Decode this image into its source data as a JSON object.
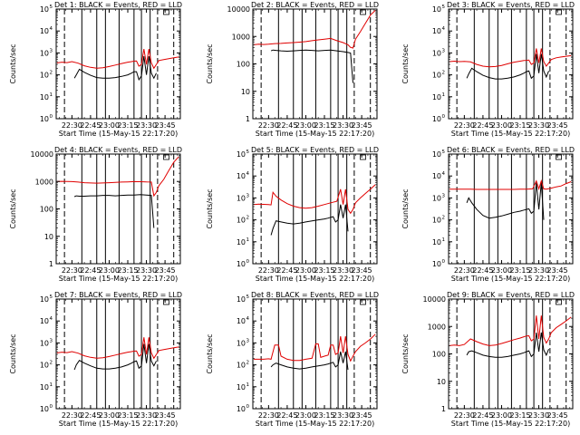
{
  "xlabel": "Start Time (15-May-15 22:17:20)",
  "ylabel": "Counts/sec",
  "x_ticks": [
    "22:30",
    "22:45",
    "23:00",
    "23:15",
    "23:30",
    "23:45"
  ],
  "x_tick_minutes": [
    30,
    45,
    60,
    75,
    90,
    105
  ],
  "xlim_minutes": [
    17.33,
    117.33
  ],
  "colors": {
    "black_series": "#000000",
    "red_series": "#e00000",
    "frame": "#000000"
  },
  "marker_lines_minutes": {
    "dashed": [
      24,
      99,
      112
    ],
    "solid": [
      38,
      50,
      57,
      68,
      80,
      86,
      93
    ]
  },
  "grid": false,
  "chart_data": [
    {
      "type": "line",
      "title": "Det 1: BLACK = Events, RED = LLD",
      "log_scale": true,
      "ylim": [
        1,
        100000
      ],
      "y_ticks": [
        1,
        10,
        100,
        1000,
        10000,
        100000
      ],
      "y_tick_style": "power",
      "series": [
        {
          "color": "black",
          "x": [
            32,
            33.5,
            36,
            40,
            45,
            50,
            55,
            60,
            65,
            70,
            75,
            78,
            80,
            82,
            84,
            86,
            88,
            90,
            92,
            94,
            96,
            98
          ],
          "y": [
            70,
            100,
            180,
            130,
            95,
            75,
            70,
            70,
            75,
            85,
            100,
            120,
            140,
            140,
            60,
            90,
            700,
            100,
            700,
            120,
            70,
            120
          ]
        },
        {
          "color": "red",
          "x": [
            18,
            22,
            26,
            30,
            35,
            40,
            45,
            50,
            55,
            60,
            65,
            70,
            75,
            78,
            80,
            82,
            84,
            86,
            88,
            90,
            92,
            94,
            96,
            98,
            100,
            104,
            108,
            112,
            116
          ],
          "y": [
            350,
            380,
            360,
            400,
            340,
            260,
            220,
            200,
            210,
            240,
            280,
            330,
            380,
            400,
            420,
            430,
            250,
            300,
            1500,
            300,
            1500,
            350,
            200,
            300,
            450,
            500,
            550,
            600,
            650
          ]
        }
      ]
    },
    {
      "type": "line",
      "title": "Det 2: BLACK = Events, RED = LLD",
      "log_scale": true,
      "ylim": [
        1,
        10000
      ],
      "y_ticks": [
        1,
        10,
        100,
        1000,
        10000
      ],
      "y_tick_style": "plain",
      "y_tick_labels": [
        "1",
        "10",
        "100",
        "1000",
        "10000"
      ],
      "series": [
        {
          "color": "black",
          "x": [
            32,
            33.5,
            36,
            40,
            45,
            50,
            55,
            60,
            65,
            70,
            75,
            80,
            85,
            90,
            94,
            96,
            98
          ],
          "y": [
            300,
            320,
            310,
            300,
            290,
            300,
            310,
            320,
            310,
            300,
            310,
            320,
            300,
            280,
            260,
            250,
            20
          ]
        },
        {
          "color": "red",
          "x": [
            18,
            22,
            26,
            30,
            35,
            40,
            45,
            50,
            55,
            60,
            65,
            70,
            75,
            80,
            85,
            90,
            94,
            96,
            98,
            100,
            104,
            108,
            112,
            116
          ],
          "y": [
            500,
            520,
            510,
            520,
            550,
            560,
            580,
            600,
            620,
            650,
            700,
            750,
            800,
            850,
            700,
            600,
            500,
            400,
            380,
            800,
            1500,
            3000,
            6000,
            9000
          ]
        }
      ]
    },
    {
      "type": "line",
      "title": "Det 3: BLACK = Events, RED = LLD",
      "log_scale": true,
      "ylim": [
        1,
        100000
      ],
      "y_ticks": [
        1,
        10,
        100,
        1000,
        10000,
        100000
      ],
      "y_tick_style": "power",
      "series": [
        {
          "color": "black",
          "x": [
            32,
            33.5,
            36,
            40,
            45,
            50,
            55,
            60,
            65,
            70,
            75,
            78,
            80,
            82,
            84,
            86,
            88,
            90,
            92,
            94,
            96,
            98
          ],
          "y": [
            70,
            110,
            200,
            140,
            95,
            75,
            65,
            65,
            70,
            80,
            100,
            120,
            140,
            150,
            70,
            90,
            900,
            120,
            900,
            150,
            80,
            150
          ]
        },
        {
          "color": "red",
          "x": [
            18,
            22,
            26,
            30,
            35,
            40,
            45,
            50,
            55,
            60,
            65,
            70,
            75,
            78,
            80,
            82,
            84,
            86,
            88,
            90,
            92,
            94,
            96,
            98,
            100,
            104,
            108,
            112,
            116
          ],
          "y": [
            400,
            420,
            400,
            410,
            390,
            300,
            250,
            230,
            240,
            270,
            320,
            380,
            420,
            450,
            460,
            470,
            300,
            350,
            1600,
            350,
            1600,
            400,
            250,
            350,
            500,
            600,
            650,
            700,
            750
          ]
        }
      ]
    },
    {
      "type": "line",
      "title": "Det 4: BLACK = Events, RED = LLD",
      "log_scale": true,
      "ylim": [
        1,
        10000
      ],
      "y_ticks": [
        1,
        10,
        100,
        1000,
        10000
      ],
      "y_tick_style": "plain",
      "y_tick_labels": [
        "1",
        "10",
        "100",
        "1000",
        "10000"
      ],
      "series": [
        {
          "color": "black",
          "x": [
            32,
            33.5,
            36,
            40,
            45,
            50,
            55,
            60,
            65,
            70,
            75,
            80,
            85,
            90,
            94,
            96
          ],
          "y": [
            280,
            300,
            290,
            290,
            300,
            300,
            310,
            310,
            300,
            310,
            320,
            320,
            330,
            320,
            310,
            20
          ]
        },
        {
          "color": "red",
          "x": [
            18,
            22,
            26,
            30,
            35,
            40,
            45,
            50,
            55,
            60,
            65,
            70,
            75,
            80,
            85,
            90,
            94,
            96,
            98,
            100,
            104,
            108,
            112,
            116
          ],
          "y": [
            1000,
            1010,
            1000,
            990,
            950,
            900,
            880,
            870,
            880,
            900,
            920,
            950,
            970,
            990,
            980,
            960,
            950,
            300,
            400,
            700,
            1200,
            2500,
            5000,
            8000
          ]
        }
      ]
    },
    {
      "type": "line",
      "title": "Det 5: BLACK = Events, RED = LLD",
      "log_scale": true,
      "ylim": [
        1,
        100000
      ],
      "y_ticks": [
        1,
        10,
        100,
        1000,
        10000,
        100000
      ],
      "y_tick_style": "power",
      "series": [
        {
          "color": "black",
          "x": [
            32,
            33.5,
            36,
            40,
            45,
            50,
            55,
            60,
            65,
            70,
            75,
            78,
            80,
            82,
            84,
            86,
            88,
            90,
            92,
            94
          ],
          "y": [
            20,
            40,
            90,
            80,
            70,
            65,
            70,
            80,
            90,
            100,
            110,
            120,
            130,
            140,
            80,
            100,
            500,
            120,
            500,
            30
          ]
        },
        {
          "color": "red",
          "x": [
            18,
            22,
            26,
            30,
            32,
            33.5,
            36,
            40,
            45,
            50,
            55,
            60,
            65,
            70,
            75,
            80,
            85,
            88,
            90,
            92,
            94,
            96,
            98,
            100,
            104,
            108,
            112,
            116
          ],
          "y": [
            500,
            520,
            510,
            500,
            480,
            1800,
            1200,
            800,
            550,
            420,
            360,
            340,
            360,
            420,
            500,
            600,
            700,
            2500,
            500,
            2500,
            300,
            200,
            300,
            600,
            1000,
            1600,
            2500,
            4000
          ]
        }
      ]
    },
    {
      "type": "line",
      "title": "Det 6: BLACK = Events, RED = LLD",
      "log_scale": true,
      "ylim": [
        1,
        100000
      ],
      "y_ticks": [
        1,
        10,
        100,
        1000,
        10000,
        100000
      ],
      "y_tick_style": "power",
      "series": [
        {
          "color": "black",
          "x": [
            32,
            33.5,
            36,
            40,
            45,
            50,
            55,
            60,
            65,
            70,
            75,
            78,
            80,
            82,
            84,
            86,
            88,
            90,
            92,
            94
          ],
          "y": [
            600,
            1000,
            600,
            300,
            160,
            120,
            130,
            150,
            180,
            220,
            250,
            280,
            300,
            320,
            200,
            250,
            5000,
            300,
            5000,
            100
          ]
        },
        {
          "color": "red",
          "x": [
            18,
            22,
            26,
            30,
            35,
            40,
            45,
            50,
            55,
            60,
            65,
            70,
            75,
            80,
            85,
            88,
            90,
            92,
            94,
            96,
            100,
            104,
            108,
            112,
            116
          ],
          "y": [
            2500,
            2500,
            2500,
            2500,
            2500,
            2450,
            2450,
            2450,
            2450,
            2450,
            2450,
            2450,
            2500,
            2500,
            2600,
            6000,
            2600,
            6000,
            2600,
            2500,
            2800,
            3200,
            3500,
            4500,
            5500
          ]
        }
      ]
    },
    {
      "type": "line",
      "title": "Det 7: BLACK = Events, RED = LLD",
      "log_scale": true,
      "ylim": [
        1,
        100000
      ],
      "y_ticks": [
        1,
        10,
        100,
        1000,
        10000,
        100000
      ],
      "y_tick_style": "power",
      "series": [
        {
          "color": "black",
          "x": [
            32,
            33.5,
            36,
            40,
            45,
            50,
            55,
            60,
            65,
            70,
            75,
            78,
            80,
            82,
            84,
            86,
            88,
            90,
            92,
            94,
            96,
            98
          ],
          "y": [
            60,
            100,
            160,
            120,
            90,
            70,
            65,
            65,
            70,
            80,
            100,
            120,
            140,
            150,
            70,
            90,
            900,
            120,
            900,
            150,
            90,
            150
          ]
        },
        {
          "color": "red",
          "x": [
            18,
            22,
            26,
            30,
            35,
            40,
            45,
            50,
            55,
            60,
            65,
            70,
            75,
            78,
            80,
            82,
            84,
            86,
            88,
            90,
            92,
            94,
            96,
            98,
            100,
            104,
            108,
            112,
            116
          ],
          "y": [
            350,
            380,
            360,
            400,
            340,
            260,
            220,
            200,
            210,
            240,
            280,
            330,
            380,
            400,
            420,
            430,
            250,
            300,
            1800,
            300,
            1800,
            350,
            200,
            300,
            450,
            500,
            550,
            600,
            650
          ]
        }
      ]
    },
    {
      "type": "line",
      "title": "Det 8: BLACK = Events, RED = LLD",
      "log_scale": true,
      "ylim": [
        1,
        100000
      ],
      "y_ticks": [
        1,
        10,
        100,
        1000,
        10000,
        100000
      ],
      "y_tick_style": "power",
      "series": [
        {
          "color": "black",
          "x": [
            32,
            33.5,
            36,
            40,
            45,
            50,
            55,
            60,
            65,
            70,
            75,
            78,
            80,
            82,
            84,
            86,
            88,
            90,
            92,
            94
          ],
          "y": [
            80,
            100,
            120,
            100,
            80,
            70,
            65,
            70,
            80,
            90,
            100,
            110,
            120,
            130,
            80,
            100,
            400,
            120,
            400,
            60
          ]
        },
        {
          "color": "red",
          "x": [
            18,
            22,
            26,
            30,
            32,
            35,
            38,
            40,
            45,
            50,
            55,
            60,
            65,
            68,
            70,
            72,
            75,
            78,
            80,
            82,
            84,
            86,
            88,
            90,
            92,
            94,
            96,
            98,
            100,
            104,
            108,
            112,
            116
          ],
          "y": [
            180,
            180,
            180,
            190,
            180,
            800,
            800,
            250,
            180,
            160,
            160,
            180,
            200,
            900,
            900,
            220,
            250,
            280,
            800,
            800,
            300,
            350,
            2000,
            350,
            2000,
            300,
            150,
            250,
            400,
            700,
            1000,
            1500,
            2500
          ]
        }
      ]
    },
    {
      "type": "line",
      "title": "Det 9: BLACK = Events, RED = LLD",
      "log_scale": true,
      "ylim": [
        1,
        10000
      ],
      "y_ticks": [
        1,
        10,
        100,
        1000,
        10000
      ],
      "y_tick_style": "plain",
      "y_tick_labels": [
        "1",
        "10",
        "100",
        "1000",
        "10000"
      ],
      "series": [
        {
          "color": "black",
          "x": [
            32,
            33.5,
            36,
            40,
            45,
            50,
            55,
            60,
            65,
            70,
            75,
            78,
            80,
            82,
            84,
            86,
            88,
            90,
            92,
            94,
            96,
            98
          ],
          "y": [
            90,
            120,
            130,
            110,
            90,
            80,
            75,
            75,
            80,
            90,
            100,
            110,
            120,
            130,
            80,
            100,
            600,
            120,
            600,
            140,
            90,
            150
          ]
        },
        {
          "color": "red",
          "x": [
            18,
            22,
            26,
            30,
            35,
            40,
            45,
            50,
            55,
            60,
            65,
            70,
            75,
            78,
            80,
            82,
            84,
            86,
            88,
            90,
            92,
            94,
            96,
            98,
            100,
            104,
            108,
            112,
            116
          ],
          "y": [
            200,
            210,
            200,
            220,
            350,
            280,
            230,
            200,
            210,
            240,
            280,
            330,
            380,
            420,
            450,
            460,
            300,
            350,
            2500,
            350,
            2500,
            400,
            250,
            350,
            600,
            900,
            1200,
            1600,
            2200
          ]
        }
      ]
    }
  ]
}
